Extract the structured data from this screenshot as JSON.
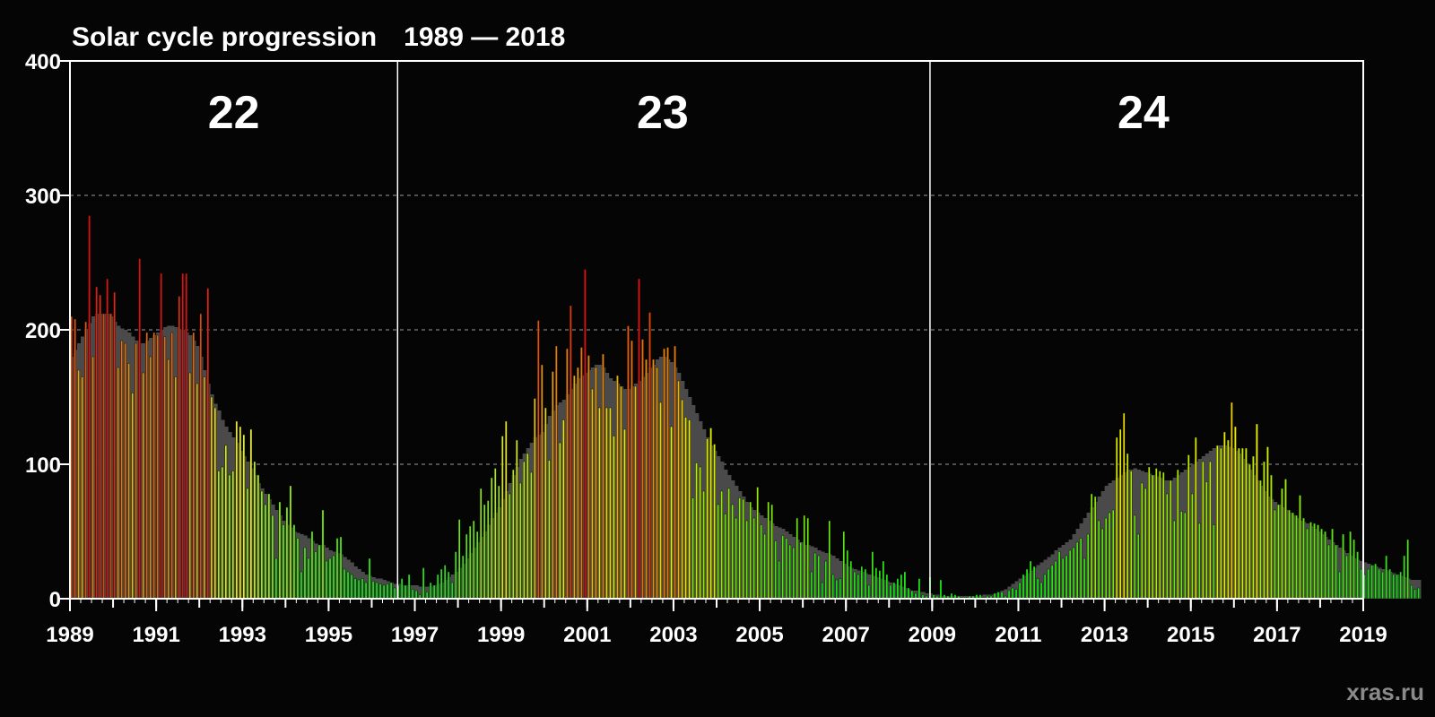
{
  "chart_data": {
    "type": "bar",
    "title": "Solar cycle progression",
    "subtitle": "1989 — 2018",
    "watermark": "xras.ru",
    "xlim": [
      1989,
      2019
    ],
    "ylim": [
      0,
      400
    ],
    "x_ticks": [
      "1989",
      "1991",
      "1993",
      "1995",
      "1997",
      "1999",
      "2001",
      "2003",
      "2005",
      "2007",
      "2009",
      "2011",
      "2013",
      "2015",
      "2017",
      "2019"
    ],
    "y_ticks": [
      "0",
      "100",
      "200",
      "300",
      "400"
    ],
    "grid_values": [
      100,
      200,
      300
    ],
    "grid": true,
    "cycles": [
      {
        "label": "22",
        "center": 1992.8
      },
      {
        "label": "23",
        "center": 2002.75
      },
      {
        "label": "24",
        "center": 2013.9
      }
    ],
    "cycle_boundaries": [
      1996.6,
      2008.95
    ],
    "colors": {
      "background": "#050505",
      "frame": "#ffffff",
      "grid": "#9a9a9a",
      "smoothed": "#4a4a4a",
      "low": "#18e018",
      "mid": "#f0f000",
      "high": "#e01010"
    },
    "start_year": 1989.0,
    "months_per_year": 12,
    "monthly_sunspot_number": [
      210,
      208,
      170,
      165,
      206,
      285,
      180,
      232,
      226,
      212,
      238,
      212,
      228,
      172,
      192,
      190,
      175,
      153,
      190,
      253,
      168,
      198,
      180,
      198,
      196,
      242,
      195,
      178,
      198,
      165,
      225,
      242,
      242,
      168,
      198,
      160,
      212,
      165,
      231,
      150,
      142,
      95,
      98,
      114,
      92,
      95,
      132,
      128,
      122,
      82,
      126,
      102,
      92,
      80,
      70,
      78,
      62,
      30,
      72,
      55,
      68,
      84,
      55,
      45,
      20,
      38,
      30,
      50,
      35,
      40,
      66,
      28,
      30,
      32,
      45,
      46,
      22,
      20,
      18,
      15,
      14,
      15,
      12,
      30,
      13,
      12,
      11,
      10,
      11,
      12,
      8,
      10,
      15,
      10,
      18,
      7,
      6,
      3,
      23,
      5,
      12,
      10,
      18,
      22,
      25,
      20,
      12,
      35,
      59,
      32,
      48,
      54,
      58,
      50,
      82,
      70,
      73,
      90,
      97,
      84,
      121,
      132,
      78,
      96,
      118,
      86,
      102,
      108,
      94,
      149,
      207,
      174,
      142,
      103,
      169,
      188,
      116,
      133,
      186,
      218,
      166,
      172,
      187,
      245,
      181,
      156,
      172,
      142,
      182,
      142,
      142,
      121,
      166,
      158,
      126,
      203,
      192,
      158,
      238,
      193,
      178,
      213,
      178,
      172,
      146,
      186,
      187,
      128,
      188,
      162,
      148,
      135,
      133,
      75,
      101,
      98,
      80,
      119,
      127,
      115,
      70,
      80,
      63,
      82,
      70,
      60,
      75,
      74,
      58,
      72,
      60,
      83,
      55,
      48,
      72,
      70,
      43,
      28,
      47,
      45,
      40,
      38,
      60,
      42,
      62,
      60,
      20,
      34,
      32,
      12,
      28,
      58,
      18,
      14,
      15,
      50,
      36,
      28,
      20,
      18,
      24,
      22,
      10,
      35,
      23,
      21,
      28,
      18,
      10,
      12,
      15,
      18,
      20,
      8,
      6,
      4,
      15,
      3,
      2,
      16,
      3,
      2,
      14,
      3,
      2,
      4,
      3,
      2,
      1,
      1,
      2,
      2,
      3,
      3,
      1,
      2,
      2,
      4,
      5,
      5,
      2,
      6,
      8,
      7,
      12,
      18,
      22,
      28,
      24,
      15,
      12,
      18,
      22,
      25,
      28,
      35,
      30,
      32,
      36,
      38,
      42,
      45,
      30,
      48,
      78,
      76,
      58,
      52,
      60,
      64,
      66,
      120,
      126,
      138,
      108,
      95,
      62,
      48,
      86,
      82,
      98,
      92,
      97,
      95,
      94,
      78,
      88,
      58,
      96,
      65,
      64,
      107,
      78,
      120,
      56,
      102,
      87,
      102,
      55,
      114,
      112,
      124,
      118,
      146,
      128,
      112,
      112,
      112,
      100,
      106,
      130,
      88,
      102,
      113,
      92,
      66,
      70,
      82,
      89,
      66,
      64,
      62,
      77,
      60,
      52,
      57,
      56,
      55,
      52,
      50,
      40,
      52,
      40,
      20,
      48,
      32,
      50,
      44,
      35,
      22,
      18,
      22,
      25,
      26,
      22,
      20,
      32,
      22,
      18,
      18,
      20,
      32,
      44,
      10,
      7,
      8
    ],
    "smoothed_sunspot_number": [
      180,
      185,
      190,
      195,
      200,
      205,
      210,
      212,
      212,
      212,
      212,
      210,
      206,
      203,
      201,
      200,
      198,
      195,
      192,
      190,
      190,
      192,
      194,
      196,
      198,
      200,
      202,
      203,
      203,
      202,
      200,
      200,
      198,
      196,
      192,
      188,
      180,
      170,
      160,
      152,
      145,
      140,
      133,
      128,
      124,
      120,
      116,
      110,
      106,
      102,
      97,
      92,
      86,
      82,
      78,
      74,
      70,
      66,
      62,
      58,
      55,
      53,
      50,
      49,
      48,
      47,
      45,
      43,
      41,
      40,
      40,
      38,
      36,
      35,
      34,
      33,
      31,
      29,
      27,
      24,
      22,
      20,
      18,
      17,
      16,
      15,
      15,
      14,
      13,
      12,
      11,
      11,
      10,
      10,
      10,
      10,
      10,
      9,
      9,
      9,
      9,
      10,
      11,
      12,
      14,
      16,
      18,
      20,
      23,
      26,
      30,
      34,
      38,
      42,
      46,
      50,
      55,
      60,
      64,
      68,
      74,
      80,
      86,
      92,
      98,
      104,
      108,
      112,
      116,
      120,
      122,
      124,
      130,
      136,
      140,
      144,
      146,
      148,
      152,
      156,
      160,
      164,
      166,
      168,
      170,
      172,
      174,
      174,
      172,
      168,
      164,
      162,
      160,
      158,
      156,
      156,
      158,
      160,
      162,
      165,
      168,
      172,
      174,
      178,
      180,
      180,
      178,
      176,
      172,
      168,
      162,
      156,
      150,
      144,
      138,
      132,
      126,
      120,
      114,
      110,
      106,
      102,
      96,
      92,
      88,
      84,
      80,
      76,
      72,
      68,
      66,
      64,
      62,
      60,
      58,
      56,
      54,
      53,
      52,
      50,
      48,
      46,
      44,
      42,
      40,
      40,
      39,
      38,
      36,
      35,
      34,
      33,
      32,
      30,
      28,
      26,
      24,
      23,
      22,
      21,
      20,
      19,
      18,
      17,
      16,
      15,
      14,
      13,
      12,
      11,
      10,
      9,
      8,
      7,
      6,
      6,
      5,
      5,
      4,
      4,
      3,
      3,
      2,
      2,
      2,
      2,
      2,
      2,
      2,
      2,
      2,
      2,
      2,
      2,
      3,
      3,
      3,
      4,
      5,
      6,
      7,
      9,
      11,
      13,
      15,
      17,
      19,
      21,
      23,
      25,
      27,
      29,
      31,
      33,
      36,
      38,
      40,
      42,
      44,
      48,
      52,
      56,
      60,
      64,
      68,
      72,
      76,
      80,
      84,
      86,
      88,
      90,
      92,
      94,
      96,
      96,
      97,
      96,
      95,
      94,
      93,
      92,
      91,
      90,
      88,
      88,
      88,
      90,
      92,
      94,
      96,
      98,
      100,
      102,
      104,
      106,
      108,
      110,
      112,
      114,
      114,
      114,
      113,
      112,
      110,
      108,
      104,
      100,
      96,
      92,
      88,
      84,
      80,
      76,
      74,
      72,
      70,
      68,
      66,
      64,
      62,
      60,
      58,
      57,
      56,
      54,
      52,
      50,
      48,
      46,
      44,
      42,
      40,
      38,
      36,
      34,
      32,
      30,
      29,
      28,
      27,
      26,
      25,
      24,
      23,
      22,
      21,
      20,
      19,
      18,
      17,
      16,
      15,
      14,
      14,
      14
    ]
  }
}
